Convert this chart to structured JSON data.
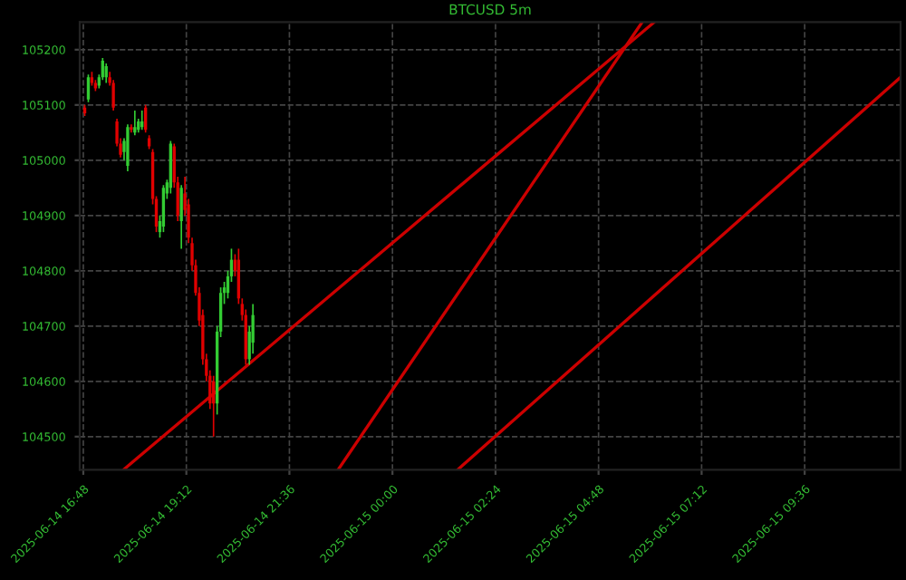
{
  "chart_data": {
    "type": "candlestick",
    "title": "BTCUSD 5m",
    "x": [
      "2025-06-14T16:50",
      "2025-06-14T16:55",
      "2025-06-14T17:00",
      "2025-06-14T17:05",
      "2025-06-14T17:10",
      "2025-06-14T17:15",
      "2025-06-14T17:20",
      "2025-06-14T17:25",
      "2025-06-14T17:30",
      "2025-06-14T17:35",
      "2025-06-14T17:40",
      "2025-06-14T17:45",
      "2025-06-14T17:50",
      "2025-06-14T17:55",
      "2025-06-14T18:00",
      "2025-06-14T18:05",
      "2025-06-14T18:10",
      "2025-06-14T18:15",
      "2025-06-14T18:20",
      "2025-06-14T18:25",
      "2025-06-14T18:30",
      "2025-06-14T18:35",
      "2025-06-14T18:40",
      "2025-06-14T18:45",
      "2025-06-14T18:50",
      "2025-06-14T18:55",
      "2025-06-14T19:00",
      "2025-06-14T19:05",
      "2025-06-14T19:10",
      "2025-06-14T19:15",
      "2025-06-14T19:20",
      "2025-06-14T19:25",
      "2025-06-14T19:30",
      "2025-06-14T19:35",
      "2025-06-14T19:40",
      "2025-06-14T19:45",
      "2025-06-14T19:50",
      "2025-06-14T19:55",
      "2025-06-14T20:00",
      "2025-06-14T20:05",
      "2025-06-14T20:10",
      "2025-06-14T20:15",
      "2025-06-14T20:20",
      "2025-06-14T20:25",
      "2025-06-14T20:30",
      "2025-06-14T20:35",
      "2025-06-14T20:40",
      "2025-06-14T20:45"
    ],
    "ohlc": [
      [
        105095,
        105100,
        105080,
        105085
      ],
      [
        105110,
        105155,
        105105,
        105150
      ],
      [
        105150,
        105160,
        105135,
        105140
      ],
      [
        105140,
        105145,
        105125,
        105130
      ],
      [
        105135,
        105155,
        105130,
        105150
      ],
      [
        105150,
        105185,
        105145,
        105180
      ],
      [
        105150,
        105175,
        105140,
        105170
      ],
      [
        105150,
        105160,
        105135,
        105140
      ],
      [
        105140,
        105145,
        105090,
        105095
      ],
      [
        105070,
        105075,
        105025,
        105030
      ],
      [
        105030,
        105040,
        105005,
        105010
      ],
      [
        105015,
        105040,
        105000,
        105035
      ],
      [
        104990,
        105065,
        104980,
        105060
      ],
      [
        105060,
        105065,
        105050,
        105055
      ],
      [
        105050,
        105090,
        105045,
        105060
      ],
      [
        105055,
        105075,
        105050,
        105070
      ],
      [
        105060,
        105090,
        105055,
        105070
      ],
      [
        105095,
        105100,
        105050,
        105055
      ],
      [
        105040,
        105045,
        105020,
        105025
      ],
      [
        105015,
        105020,
        104920,
        104930
      ],
      [
        104930,
        104935,
        104870,
        104880
      ],
      [
        104870,
        104900,
        104860,
        104890
      ],
      [
        104880,
        104955,
        104870,
        104950
      ],
      [
        104940,
        104965,
        104930,
        104960
      ],
      [
        104950,
        105035,
        104940,
        105030
      ],
      [
        105025,
        105030,
        104950,
        104960
      ],
      [
        104960,
        104970,
        104890,
        104900
      ],
      [
        104890,
        104955,
        104840,
        104950
      ],
      [
        104940,
        104970,
        104900,
        104910
      ],
      [
        104920,
        104930,
        104850,
        104860
      ],
      [
        104850,
        104860,
        104800,
        104810
      ],
      [
        104810,
        104820,
        104755,
        104760
      ],
      [
        104760,
        104770,
        104700,
        104710
      ],
      [
        104720,
        104730,
        104630,
        104640
      ],
      [
        104640,
        104650,
        104600,
        104610
      ],
      [
        104610,
        104620,
        104550,
        104560
      ],
      [
        104600,
        104610,
        104500,
        104560
      ],
      [
        104560,
        104700,
        104540,
        104690
      ],
      [
        104690,
        104770,
        104680,
        104760
      ],
      [
        104760,
        104780,
        104740,
        104770
      ],
      [
        104760,
        104800,
        104750,
        104790
      ],
      [
        104790,
        104840,
        104780,
        104820
      ],
      [
        104820,
        104830,
        104790,
        104800
      ],
      [
        104820,
        104840,
        104740,
        104750
      ],
      [
        104740,
        104750,
        104710,
        104720
      ],
      [
        104720,
        104730,
        104630,
        104640
      ],
      [
        104640,
        104700,
        104630,
        104690
      ],
      [
        104670,
        104740,
        104650,
        104720
      ]
    ],
    "colors": [
      "#e00000",
      "#33cc33",
      "#e00000",
      "#e00000",
      "#33cc33",
      "#33cc33",
      "#33cc33",
      "#e00000",
      "#e00000",
      "#e00000",
      "#e00000",
      "#33cc33",
      "#33cc33",
      "#e00000",
      "#33cc33",
      "#33cc33",
      "#33cc33",
      "#e00000",
      "#e00000",
      "#e00000",
      "#e00000",
      "#33cc33",
      "#33cc33",
      "#33cc33",
      "#33cc33",
      "#e00000",
      "#e00000",
      "#33cc33",
      "#e00000",
      "#e00000",
      "#e00000",
      "#e00000",
      "#e00000",
      "#e00000",
      "#e00000",
      "#e00000",
      "#e00000",
      "#33cc33",
      "#33cc33",
      "#33cc33",
      "#33cc33",
      "#33cc33",
      "#e00000",
      "#e00000",
      "#e00000",
      "#e00000",
      "#33cc33",
      "#33cc33"
    ],
    "series": [
      {
        "type": "line",
        "color": "#cc0000",
        "x": [
          "2025-06-14T17:44",
          "2025-06-15T06:06"
        ],
        "values": [
          104440,
          105250
        ]
      },
      {
        "type": "line",
        "color": "#cc0000",
        "x": [
          "2025-06-14T22:44",
          "2025-06-15T05:49"
        ],
        "values": [
          104440,
          105250
        ]
      },
      {
        "type": "line",
        "color": "#cc0000",
        "x": [
          "2025-06-15T01:31",
          "2025-06-15T11:50"
        ],
        "values": [
          104440,
          105150
        ]
      }
    ],
    "xlim": [
      "2025-06-14T16:43",
      "2025-06-15T11:50"
    ],
    "ylim": [
      104440,
      105250
    ],
    "xticks": [
      {
        "value": "2025-06-14T16:48",
        "label": "2025-06-14 16:48"
      },
      {
        "value": "2025-06-14T19:12",
        "label": "2025-06-14 19:12"
      },
      {
        "value": "2025-06-14T21:36",
        "label": "2025-06-14 21:36"
      },
      {
        "value": "2025-06-15T00:00",
        "label": "2025-06-15 00:00"
      },
      {
        "value": "2025-06-15T02:24",
        "label": "2025-06-15 02:24"
      },
      {
        "value": "2025-06-15T04:48",
        "label": "2025-06-15 04:48"
      },
      {
        "value": "2025-06-15T07:12",
        "label": "2025-06-15 07:12"
      },
      {
        "value": "2025-06-15T09:36",
        "label": "2025-06-15 09:36"
      }
    ],
    "yticks": [
      104500,
      104600,
      104700,
      104800,
      104900,
      105000,
      105100,
      105200
    ],
    "grid": true
  }
}
